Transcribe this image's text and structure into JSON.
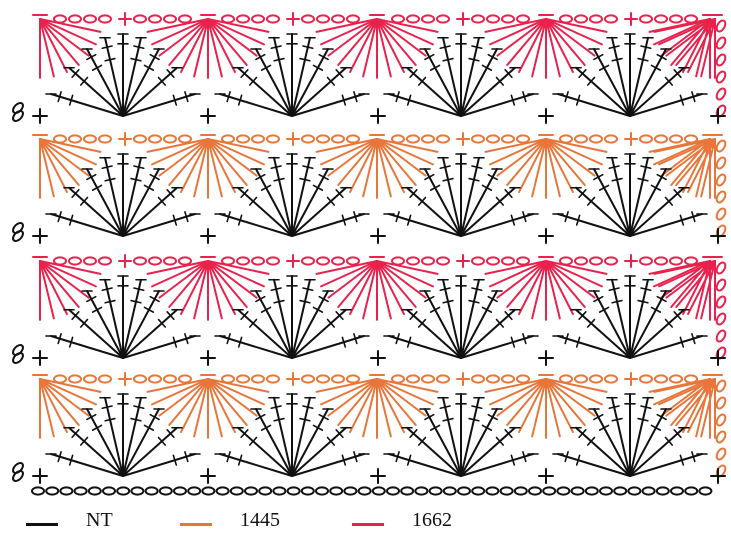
{
  "legend": [
    {
      "label": "NT",
      "color": "#111111"
    },
    {
      "label": "1445",
      "color": "#e8763a"
    },
    {
      "label": "1662",
      "color": "#e8224d"
    }
  ],
  "rows": [
    {
      "color_ref": "1662"
    },
    {
      "color_ref": "1445"
    },
    {
      "color_ref": "1662"
    },
    {
      "color_ref": "1445"
    }
  ],
  "fan_color": "#111111",
  "foundation_color": "#111111",
  "fans_per_row": 4
}
